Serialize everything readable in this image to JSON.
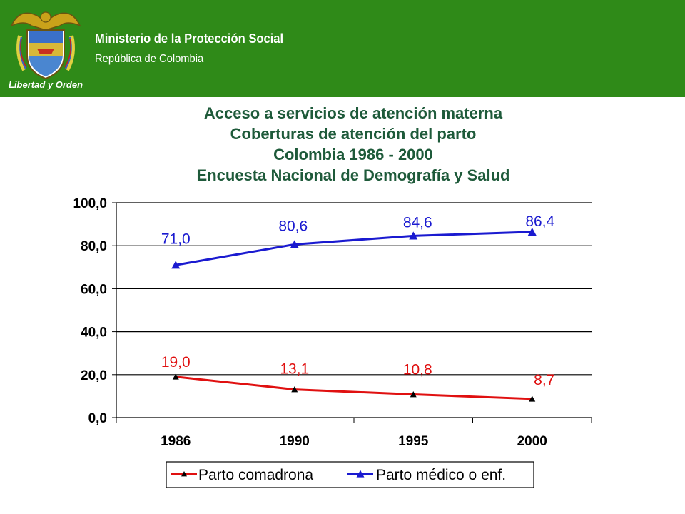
{
  "header": {
    "ministry": "Ministerio de la Protección Social",
    "republic": "República de Colombia",
    "motto": "Libertad y Orden",
    "color": "#2f8a18"
  },
  "chart_data": {
    "type": "line",
    "title_lines": [
      "Acceso a servicios de atención materna",
      "Coberturas de atención del parto",
      "Colombia 1986 - 2000",
      "Encuesta Nacional de Demografía y Salud"
    ],
    "categories": [
      "1986",
      "1990",
      "1995",
      "2000"
    ],
    "ylim": [
      0,
      100
    ],
    "yticks": [
      "0,0",
      "20,0",
      "40,0",
      "60,0",
      "80,0",
      "100,0"
    ],
    "grid": true,
    "legend_position": "bottom",
    "series": [
      {
        "name": "Parto comadrona",
        "values": [
          19.0,
          13.1,
          10.8,
          8.7
        ],
        "labels": [
          "19,0",
          "13,1",
          "10,8",
          "8,7"
        ],
        "color": "#e01010"
      },
      {
        "name": "Parto médico o enf.",
        "values": [
          71.0,
          80.6,
          84.6,
          86.4
        ],
        "labels": [
          "71,0",
          "80,6",
          "84,6",
          "86,4"
        ],
        "color": "#1a1ad0"
      }
    ]
  }
}
